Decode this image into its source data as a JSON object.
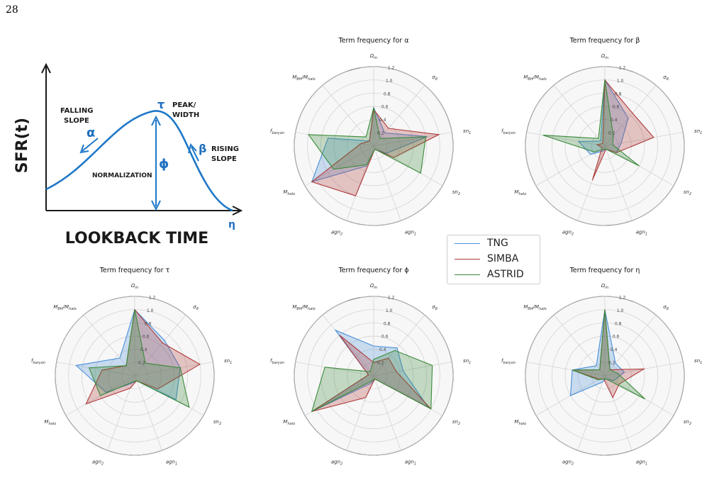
{
  "page_number": "28",
  "sketch": {
    "y_axis_label": "SFR(t)",
    "x_axis_label": "LOOKBACK TIME",
    "falling_slope_line1": "FALLING",
    "falling_slope_line2": "SLOPE",
    "alpha_symbol": "α",
    "tau_symbol": "τ",
    "peak_width_line1": "PEAK/",
    "peak_width_line2": "WIDTH",
    "phi_symbol": "ϕ",
    "normalization": "NORMALIZATION",
    "beta_symbol": "β",
    "rising_line1": "RISING",
    "rising_line2": "SLOPE",
    "eta_symbol": "η",
    "curve_color": "#1f78c8"
  },
  "legend": [
    {
      "label": "TNG",
      "color": "#4a90d9"
    },
    {
      "label": "SIMBA",
      "color": "#b03a3a"
    },
    {
      "label": "ASTRID",
      "color": "#3a8a3a"
    }
  ],
  "chart_data": [
    {
      "type": "radar",
      "title": "Term frequency for α",
      "axes": [
        "Ωm",
        "σ8",
        "sn1",
        "sn2",
        "agn1",
        "agn2",
        "Mhalo",
        "fbaryon",
        "MBH/Mhalo"
      ],
      "rticks": [
        "0.2",
        "0.4",
        "0.6",
        "0.8",
        "1.0",
        "1.2"
      ],
      "rlim": [
        0,
        1.2
      ],
      "series": [
        {
          "name": "TNG",
          "values": [
            0.58,
            0.26,
            0.82,
            0.22,
            0.05,
            0.32,
            1.08,
            0.7,
            0.1
          ]
        },
        {
          "name": "SIMBA",
          "values": [
            0.55,
            0.35,
            1.0,
            0.35,
            0.05,
            0.8,
            1.08,
            0.2,
            0.1
          ]
        },
        {
          "name": "ASTRID",
          "values": [
            0.58,
            0.15,
            0.8,
            0.82,
            0.05,
            0.3,
            0.7,
            1.0,
            0.18
          ]
        }
      ]
    },
    {
      "type": "radar",
      "title": "Term frequency for β",
      "axes": [
        "Ωm",
        "σ8",
        "sn1",
        "sn2",
        "agn1",
        "agn2",
        "Mhalo",
        "fbaryon",
        "MBH/Mhalo"
      ],
      "rticks": [
        "0.2",
        "0.4",
        "0.6",
        "0.8",
        "1.0",
        "1.2"
      ],
      "rlim": [
        0,
        1.2
      ],
      "series": [
        {
          "name": "TNG",
          "values": [
            1.0,
            0.55,
            0.25,
            0.2,
            0.05,
            0.08,
            0.25,
            0.4,
            0.1
          ]
        },
        {
          "name": "SIMBA",
          "values": [
            1.0,
            0.65,
            0.75,
            0.2,
            0.05,
            0.55,
            0.05,
            0.12,
            0.05
          ]
        },
        {
          "name": "ASTRID",
          "values": [
            1.0,
            0.2,
            0.12,
            0.6,
            0.05,
            0.05,
            0.18,
            0.95,
            0.15
          ]
        }
      ]
    },
    {
      "type": "radar",
      "title": "Term frequency for τ",
      "axes": [
        "Ωm",
        "σ8",
        "sn1",
        "sn2",
        "agn1",
        "agn2",
        "Mhalo",
        "fbaryon",
        "MBH/Mhalo"
      ],
      "rticks": [
        "0.2",
        "0.4",
        "0.6",
        "0.8",
        "1.0",
        "1.2"
      ],
      "rlim": [
        0,
        1.2
      ],
      "series": [
        {
          "name": "TNG",
          "values": [
            1.0,
            0.7,
            0.7,
            0.72,
            0.08,
            0.12,
            0.5,
            0.9,
            0.35
          ]
        },
        {
          "name": "SIMBA",
          "values": [
            1.0,
            0.65,
            1.0,
            0.4,
            0.08,
            0.2,
            0.85,
            0.5,
            0.2
          ]
        },
        {
          "name": "ASTRID",
          "values": [
            1.0,
            0.25,
            0.7,
            0.95,
            0.08,
            0.1,
            0.6,
            0.7,
            0.2
          ]
        }
      ]
    },
    {
      "type": "radar",
      "title": "Term frequency for ϕ",
      "axes": [
        "Ωm",
        "σ8",
        "sn1",
        "sn2",
        "agn1",
        "agn2",
        "Mhalo",
        "fbaryon",
        "MBH/Mhalo"
      ],
      "rticks": [
        "0.2",
        "0.4",
        "0.6",
        "0.8",
        "1.0",
        "1.2"
      ],
      "rlim": [
        0,
        1.2
      ],
      "series": [
        {
          "name": "TNG",
          "values": [
            0.45,
            0.55,
            0.45,
            0.95,
            0.05,
            0.12,
            1.08,
            0.08,
            0.9
          ]
        },
        {
          "name": "SIMBA",
          "values": [
            0.2,
            0.35,
            0.35,
            1.0,
            0.05,
            0.35,
            1.08,
            0.08,
            0.8
          ]
        },
        {
          "name": "ASTRID",
          "values": [
            0.25,
            0.5,
            0.9,
            1.0,
            0.05,
            0.08,
            1.08,
            0.75,
            0.08
          ]
        }
      ]
    },
    {
      "type": "radar",
      "title": "Term frequency for η",
      "axes": [
        "Ωm",
        "σ8",
        "sn1",
        "sn2",
        "agn1",
        "agn2",
        "Mhalo",
        "fbaryon",
        "MBH/Mhalo"
      ],
      "rticks": [
        "0.2",
        "0.4",
        "0.6",
        "0.8",
        "1.0",
        "1.2"
      ],
      "rlim": [
        0,
        1.2
      ],
      "series": [
        {
          "name": "TNG",
          "values": [
            1.0,
            0.25,
            0.3,
            0.15,
            0.05,
            0.1,
            0.6,
            0.5,
            0.2
          ]
        },
        {
          "name": "SIMBA",
          "values": [
            1.0,
            0.12,
            0.6,
            0.25,
            0.35,
            0.05,
            0.1,
            0.5,
            0.12
          ]
        },
        {
          "name": "ASTRID",
          "values": [
            1.0,
            0.12,
            0.2,
            0.7,
            0.05,
            0.05,
            0.12,
            0.5,
            0.12
          ]
        }
      ]
    }
  ]
}
